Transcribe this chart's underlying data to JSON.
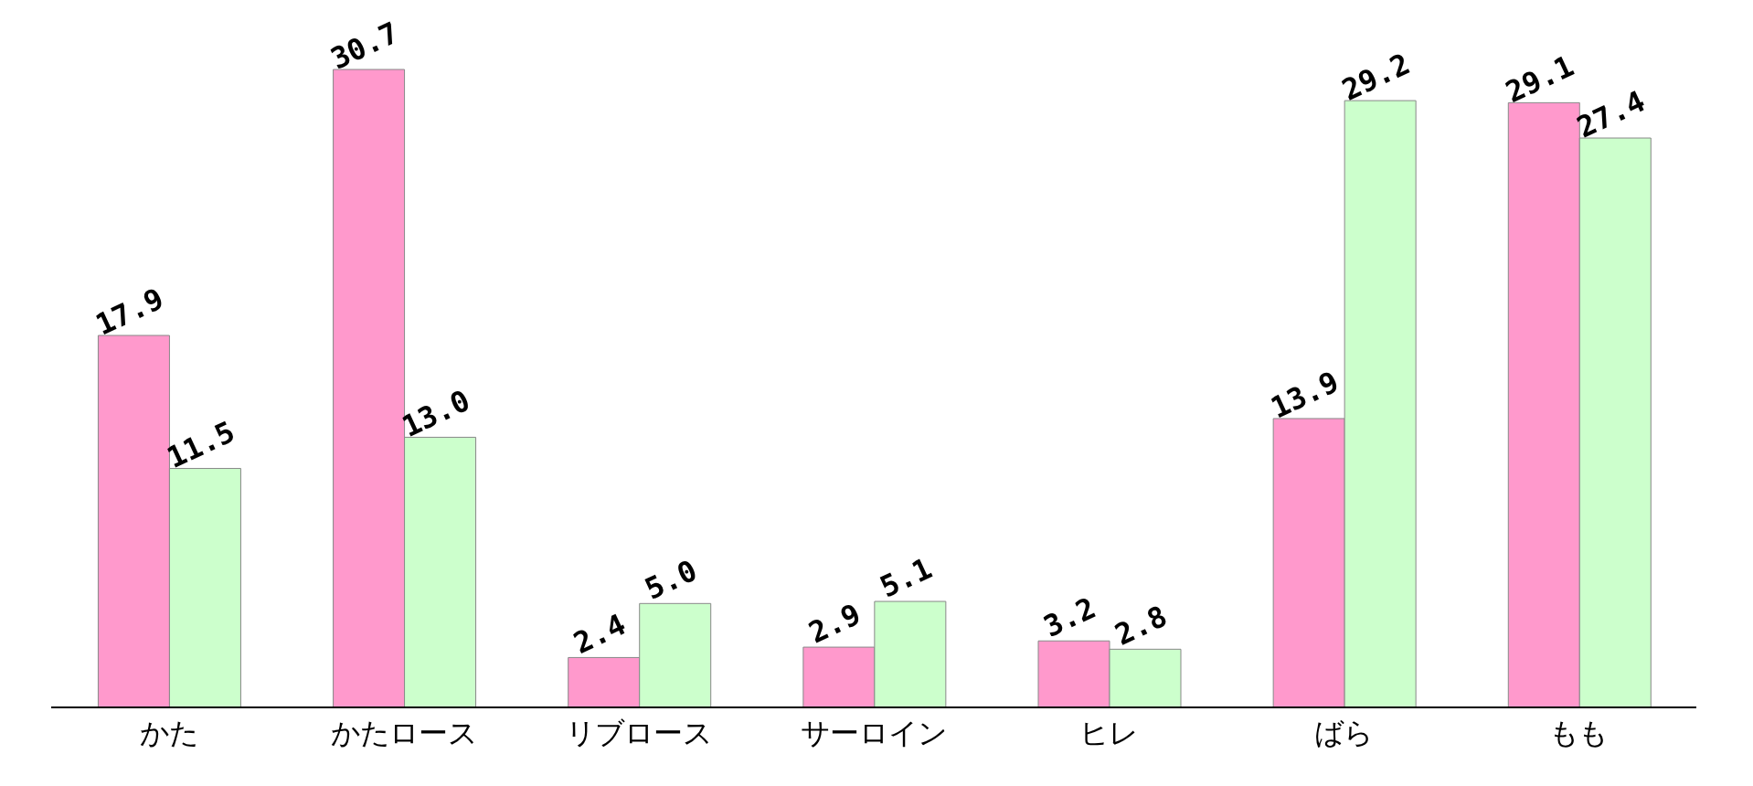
{
  "chart_data": {
    "type": "bar",
    "categories": [
      "かた",
      "かたロース",
      "リブロース",
      "サーロイン",
      "ヒレ",
      "ばら",
      "もも"
    ],
    "series": [
      {
        "color": "#ff99cc",
        "values": [
          17.9,
          30.7,
          2.4,
          2.9,
          3.2,
          13.9,
          29.1
        ],
        "value_labels": [
          "17.9",
          "30.7",
          "2.4",
          "2.9",
          "3.2",
          "13.9",
          "29.1"
        ]
      },
      {
        "color": "#ccffcc",
        "values": [
          11.5,
          13.0,
          5.0,
          5.1,
          2.8,
          29.2,
          27.4
        ],
        "value_labels": [
          "11.5",
          "13.0",
          "5.0",
          "5.1",
          "2.8",
          "29.2",
          "27.4"
        ]
      }
    ],
    "grid": false,
    "legend": false
  }
}
